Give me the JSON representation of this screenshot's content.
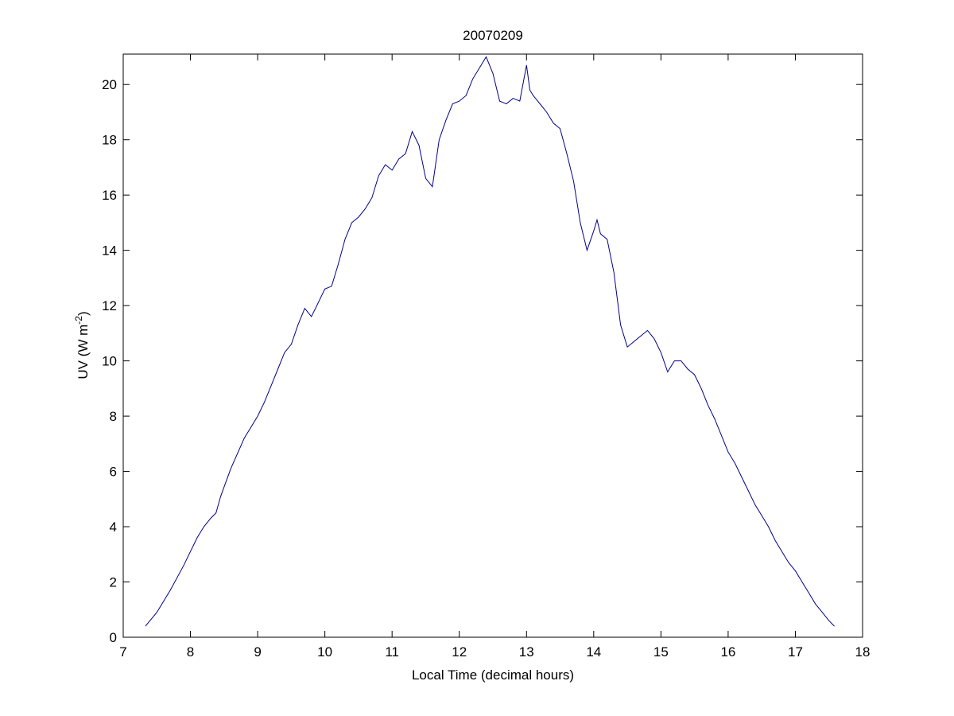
{
  "chart_data": {
    "type": "line",
    "title": "20070209",
    "xlabel": "Local Time (decimal hours)",
    "ylabel": "UV (W m",
    "ylabel_sup": "-2",
    "ylabel_close": ")",
    "xlim": [
      7,
      18
    ],
    "ylim": [
      0,
      21.1
    ],
    "xticks": [
      7,
      8,
      9,
      10,
      11,
      12,
      13,
      14,
      15,
      16,
      17,
      18
    ],
    "yticks": [
      0,
      2,
      4,
      6,
      8,
      10,
      12,
      14,
      16,
      18,
      20
    ],
    "grid": false,
    "line_color": "#00008b",
    "series": [
      {
        "x": [
          7.33,
          7.5,
          7.7,
          7.9,
          8.0,
          8.1,
          8.2,
          8.3,
          8.38,
          8.45,
          8.6,
          8.8,
          9.0,
          9.1,
          9.2,
          9.3,
          9.4,
          9.5,
          9.6,
          9.7,
          9.8,
          9.9,
          10.0,
          10.1,
          10.2,
          10.3,
          10.4,
          10.5,
          10.6,
          10.7,
          10.8,
          10.9,
          11.0,
          11.1,
          11.2,
          11.3,
          11.4,
          11.5,
          11.6,
          11.7,
          11.8,
          11.9,
          12.0,
          12.1,
          12.2,
          12.3,
          12.4,
          12.5,
          12.6,
          12.7,
          12.8,
          12.9,
          13.0,
          13.05,
          13.1,
          13.2,
          13.3,
          13.4,
          13.5,
          13.6,
          13.7,
          13.8,
          13.9,
          14.0,
          14.05,
          14.1,
          14.2,
          14.3,
          14.4,
          14.5,
          14.6,
          14.7,
          14.8,
          14.9,
          15.0,
          15.1,
          15.2,
          15.3,
          15.4,
          15.5,
          15.6,
          15.7,
          15.8,
          15.9,
          16.0,
          16.1,
          16.2,
          16.3,
          16.4,
          16.5,
          16.6,
          16.7,
          16.8,
          16.9,
          17.0,
          17.1,
          17.2,
          17.3,
          17.4,
          17.5,
          17.58
        ],
        "y": [
          0.4,
          0.9,
          1.7,
          2.6,
          3.1,
          3.6,
          4.0,
          4.3,
          4.5,
          5.1,
          6.1,
          7.2,
          8.0,
          8.5,
          9.1,
          9.7,
          10.3,
          10.6,
          11.3,
          11.9,
          11.6,
          12.1,
          12.6,
          12.7,
          13.5,
          14.4,
          15.0,
          15.2,
          15.5,
          15.9,
          16.7,
          17.1,
          16.9,
          17.3,
          17.5,
          18.3,
          17.8,
          16.6,
          16.3,
          18.0,
          18.7,
          19.3,
          19.4,
          19.6,
          20.2,
          20.6,
          21.0,
          20.4,
          19.4,
          19.3,
          19.5,
          19.4,
          20.7,
          19.8,
          19.6,
          19.3,
          19.0,
          18.6,
          18.4,
          17.5,
          16.5,
          15.0,
          14.0,
          14.7,
          15.1,
          14.6,
          14.4,
          13.2,
          11.3,
          10.5,
          10.7,
          10.9,
          11.1,
          10.8,
          10.3,
          9.6,
          10.0,
          10.0,
          9.7,
          9.5,
          9.0,
          8.4,
          7.9,
          7.3,
          6.7,
          6.3,
          5.8,
          5.3,
          4.8,
          4.4,
          4.0,
          3.5,
          3.1,
          2.7,
          2.4,
          2.0,
          1.6,
          1.2,
          0.9,
          0.6,
          0.4
        ]
      }
    ]
  }
}
